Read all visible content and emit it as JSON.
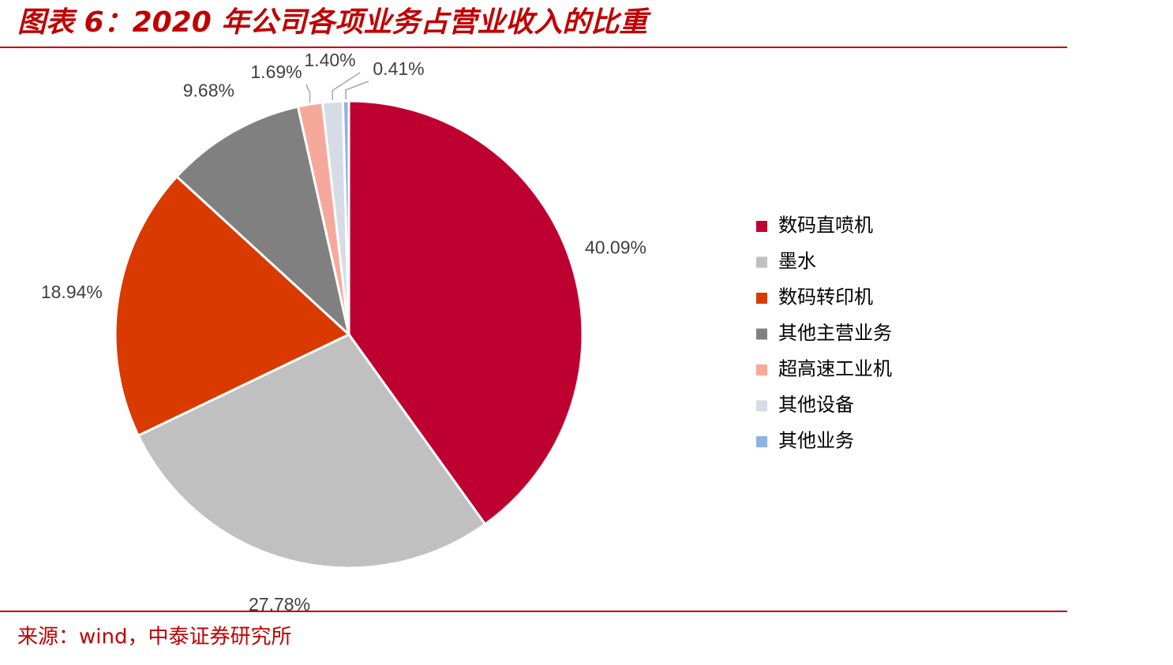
{
  "chart_data": {
    "type": "pie",
    "title": "图表 6：2020 年公司各项业务占营业收入的比重",
    "source": "来源：wind，中泰证券研究所",
    "categories": [
      "数码直喷机",
      "墨水",
      "数码转印机",
      "其他主营业务",
      "超高速工业机",
      "其他设备",
      "其他业务"
    ],
    "values": [
      40.09,
      27.78,
      18.94,
      9.68,
      1.69,
      1.4,
      0.41
    ],
    "value_labels": [
      "40.09%",
      "27.78%",
      "18.94%",
      "9.68%",
      "1.69%",
      "1.40%",
      "0.41%"
    ],
    "colors": [
      "#be0030",
      "#c0c0c0",
      "#d93a00",
      "#808080",
      "#f6a99b",
      "#d6dce6",
      "#8db3e2"
    ],
    "legend": "right"
  }
}
